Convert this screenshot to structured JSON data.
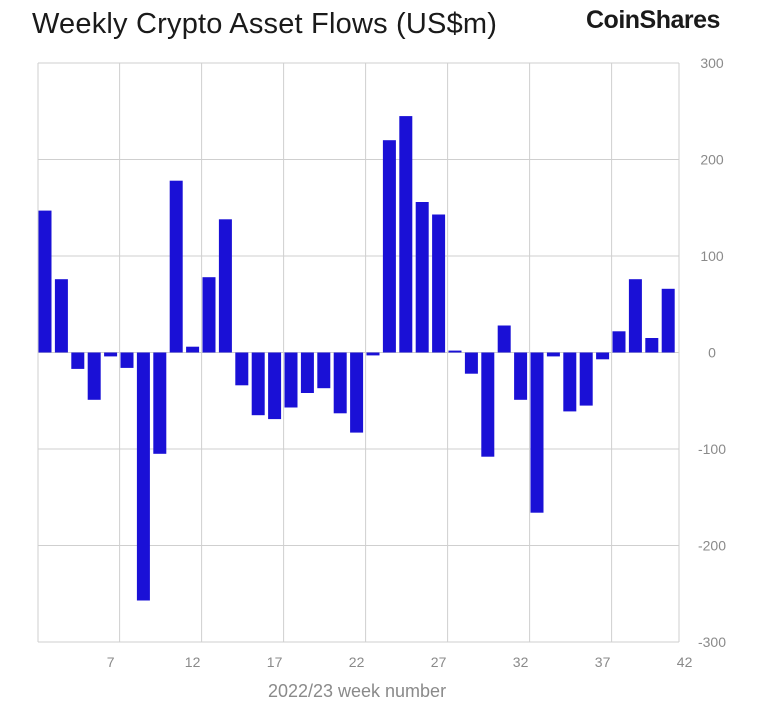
{
  "header": {
    "title": "Weekly Crypto Asset Flows (US$m)",
    "logo_text": "CoinShares"
  },
  "chart_data": {
    "type": "bar",
    "title": "Weekly Crypto Asset Flows (US$m)",
    "xlabel": "2022/23 week number",
    "ylabel": "",
    "x": [
      3,
      4,
      5,
      6,
      7,
      8,
      9,
      10,
      11,
      12,
      13,
      14,
      15,
      16,
      17,
      18,
      19,
      20,
      21,
      22,
      23,
      24,
      25,
      26,
      27,
      28,
      29,
      30,
      31,
      32,
      33,
      34,
      35,
      36,
      37,
      38,
      39,
      40,
      41,
      42
    ],
    "values": [
      147,
      76,
      -17,
      -49,
      -4,
      -16,
      -257,
      -105,
      178,
      6,
      78,
      138,
      -34,
      -65,
      -69,
      -57,
      -42,
      -37,
      -63,
      -83,
      -3,
      220,
      245,
      156,
      143,
      2,
      -22,
      -108,
      28,
      -49,
      -166,
      -4,
      -61,
      -55,
      -7,
      22,
      76,
      15,
      66,
      0
    ],
    "x_ticks": [
      7,
      12,
      17,
      22,
      27,
      32,
      37,
      42
    ],
    "y_ticks": [
      300,
      200,
      100,
      0,
      -100,
      -200,
      -300
    ],
    "ylim": [
      -300,
      300
    ],
    "y_axis_side": "right",
    "grid": true,
    "bar_color": "#1a10d6",
    "grid_color": "#cfcfcf"
  }
}
